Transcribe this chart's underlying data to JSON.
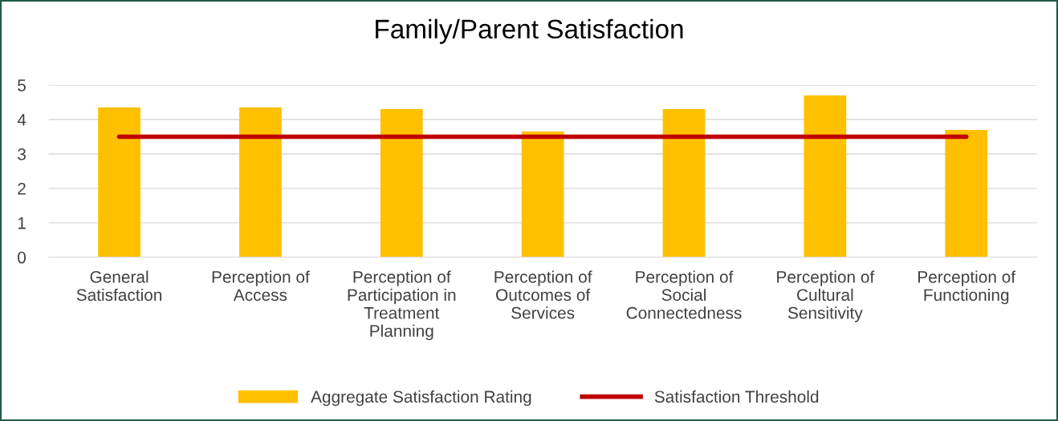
{
  "chart_data": {
    "type": "bar",
    "title": "Family/Parent Satisfaction",
    "categories": [
      "General\nSatisfaction",
      "Perception of\nAccess",
      "Perception of\nParticipation in\nTreatment\nPlanning",
      "Perception of\nOutcomes of\nServices",
      "Perception of\nSocial\nConnectedness",
      "Perception of\nCultural\nSensitivity",
      "Perception of\nFunctioning"
    ],
    "series": [
      {
        "name": "Aggregate Satisfaction Rating",
        "color": "#ffc000",
        "values": [
          4.35,
          4.35,
          4.3,
          3.65,
          4.3,
          4.7,
          3.7
        ]
      },
      {
        "name": "Satisfaction Threshold",
        "type": "line",
        "color": "#c00000",
        "values": [
          3.5,
          3.5,
          3.5,
          3.5,
          3.5,
          3.5,
          3.5
        ]
      }
    ],
    "ylim": [
      0,
      5
    ],
    "yticks": [
      0,
      1,
      2,
      3,
      4,
      5
    ],
    "grid": "y",
    "legend": "bottom"
  }
}
